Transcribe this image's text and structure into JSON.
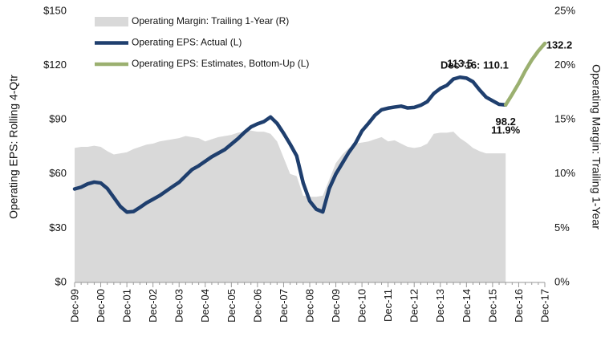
{
  "chart_data": {
    "type": "line",
    "y_label": "Operating EPS: Rolling 4-Qtr",
    "y2_label": "Operating Margin: Trailing 1-Year",
    "categories": [
      "Dec-99",
      null,
      null,
      null,
      "Dec-00",
      null,
      null,
      null,
      "Dec-01",
      null,
      null,
      null,
      "Dec-02",
      null,
      null,
      null,
      "Dec-03",
      null,
      null,
      null,
      "Dec-04",
      null,
      null,
      null,
      "Dec-05",
      null,
      null,
      null,
      "Dec-06",
      null,
      null,
      null,
      "Dec-07",
      null,
      null,
      null,
      "Dec-08",
      null,
      null,
      null,
      "Dec-09",
      null,
      null,
      null,
      "Dec-10",
      null,
      null,
      null,
      "Dec-11",
      null,
      null,
      null,
      "Dec-12",
      null,
      null,
      null,
      "Dec-13",
      null,
      null,
      null,
      "Dec-14",
      null,
      null,
      null,
      "Dec-15",
      null,
      null,
      null,
      "Dec-16",
      null,
      null,
      null,
      "Dec-17"
    ],
    "series": [
      {
        "name": "Operating Margin: Trailing 1-Year (R)",
        "type": "area",
        "axis": "y2",
        "color": "#d9d9d9",
        "values": [
          12.4,
          12.5,
          12.5,
          12.6,
          12.5,
          12.1,
          11.8,
          11.9,
          12.0,
          12.3,
          12.5,
          12.7,
          12.8,
          13.0,
          13.1,
          13.2,
          13.3,
          13.5,
          13.4,
          13.3,
          13.0,
          13.2,
          13.4,
          13.5,
          13.6,
          13.8,
          13.9,
          14.0,
          13.9,
          13.9,
          13.7,
          13.0,
          11.5,
          10.0,
          9.8,
          8.0,
          7.9,
          7.9,
          8.0,
          9.5,
          11.0,
          11.8,
          12.4,
          12.8,
          12.9,
          13.0,
          13.2,
          13.4,
          13.0,
          13.1,
          12.8,
          12.5,
          12.4,
          12.5,
          12.8,
          13.7,
          13.8,
          13.8,
          13.9,
          13.3,
          12.9,
          12.4,
          12.1,
          11.9,
          11.9,
          11.9,
          11.9,
          null,
          null,
          null,
          null,
          null,
          null
        ],
        "value_labels": [
          null,
          null,
          null,
          null,
          null,
          null,
          null,
          null,
          null,
          null,
          null,
          null,
          null,
          null,
          null,
          null,
          null,
          null,
          null,
          null,
          null,
          null,
          null,
          null,
          null,
          null,
          null,
          null,
          null,
          null,
          null,
          null,
          null,
          null,
          null,
          null,
          null,
          null,
          null,
          null,
          null,
          null,
          null,
          null,
          null,
          null,
          null,
          null,
          null,
          null,
          null,
          null,
          null,
          null,
          null,
          null,
          null,
          null,
          null,
          null,
          null,
          null,
          null,
          null,
          null,
          null,
          "11.9%",
          null,
          null,
          null,
          null,
          null,
          null
        ]
      },
      {
        "name": "Operating EPS: Actual (L)",
        "type": "line",
        "axis": "y",
        "color": "#1f3f6e",
        "values": [
          51.7,
          52.7,
          54.5,
          55.5,
          55.0,
          52.0,
          47.0,
          42.0,
          38.9,
          39.2,
          41.5,
          44.0,
          46.0,
          48.0,
          50.5,
          53.0,
          55.4,
          59.0,
          62.5,
          64.5,
          67.0,
          69.5,
          71.5,
          73.5,
          76.5,
          79.5,
          83.0,
          86.0,
          87.7,
          89.0,
          91.5,
          88.0,
          82.5,
          76.5,
          70.0,
          55.0,
          45.0,
          40.5,
          39.0,
          52.0,
          60.0,
          66.0,
          72.0,
          77.0,
          83.8,
          88.0,
          92.5,
          95.5,
          96.4,
          97.0,
          97.5,
          96.5,
          96.8,
          98.0,
          100.0,
          104.5,
          107.3,
          109.0,
          112.5,
          113.5,
          113.0,
          111.0,
          106.5,
          102.5,
          100.5,
          98.5,
          98.2,
          null,
          null,
          null,
          null,
          null,
          null
        ]
      },
      {
        "name": "Operating EPS: Estimates, Bottom-Up (L)",
        "type": "line",
        "axis": "y",
        "color": "#9bb070",
        "values": [
          null,
          null,
          null,
          null,
          null,
          null,
          null,
          null,
          null,
          null,
          null,
          null,
          null,
          null,
          null,
          null,
          null,
          null,
          null,
          null,
          null,
          null,
          null,
          null,
          null,
          null,
          null,
          null,
          null,
          null,
          null,
          null,
          null,
          null,
          null,
          null,
          null,
          null,
          null,
          null,
          null,
          null,
          null,
          null,
          null,
          null,
          null,
          null,
          null,
          null,
          null,
          null,
          null,
          null,
          null,
          null,
          null,
          null,
          null,
          null,
          null,
          null,
          null,
          null,
          null,
          null,
          98.2,
          104.0,
          110.1,
          117.0,
          123.0,
          128.0,
          132.2
        ],
        "value_labels": [
          null,
          null,
          null,
          null,
          null,
          null,
          null,
          null,
          null,
          null,
          null,
          null,
          null,
          null,
          null,
          null,
          null,
          null,
          null,
          null,
          null,
          null,
          null,
          null,
          null,
          null,
          null,
          null,
          null,
          null,
          null,
          null,
          null,
          null,
          null,
          null,
          null,
          null,
          null,
          null,
          null,
          null,
          null,
          null,
          null,
          null,
          null,
          null,
          null,
          null,
          null,
          null,
          null,
          null,
          null,
          null,
          null,
          null,
          null,
          null,
          null,
          null,
          null,
          null,
          null,
          null,
          null,
          null,
          "Dec '16: 110.1",
          null,
          null,
          null,
          null
        ]
      }
    ],
    "ylim": [
      0,
      150
    ],
    "yticks": [
      {
        "value": 0,
        "label": "$0"
      },
      {
        "value": 30,
        "label": "$30"
      },
      {
        "value": 60,
        "label": "$60"
      },
      {
        "value": 90,
        "label": "$90"
      },
      {
        "value": 120,
        "label": "$120"
      },
      {
        "value": 150,
        "label": "$150"
      }
    ],
    "y2lim": [
      0,
      25
    ],
    "y2ticks": [
      {
        "value": 0,
        "label": "0%"
      },
      {
        "value": 5,
        "label": "5%"
      },
      {
        "value": 10,
        "label": "10%"
      },
      {
        "value": 15,
        "label": "15%"
      },
      {
        "value": 20,
        "label": "20%"
      },
      {
        "value": 25,
        "label": "25%"
      }
    ],
    "grid": false,
    "legend": "upper left"
  }
}
